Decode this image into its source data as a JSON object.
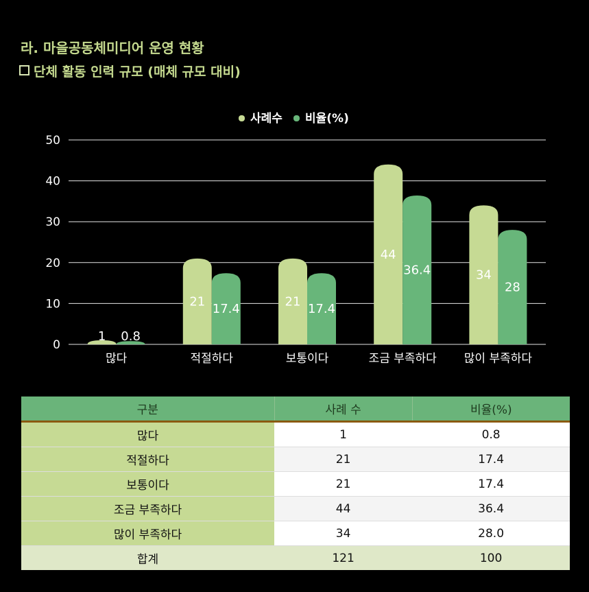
{
  "heading": "라. 마을공동체미디어 운영 현황",
  "subheading": "단체 활동 인력 규모 (매체 규모 대비)",
  "colors": {
    "series1": "#c6da94",
    "series2": "#68b67a",
    "title": "#c5da8f"
  },
  "chart_data": {
    "type": "bar",
    "categories": [
      "많다",
      "적절하다",
      "보통이다",
      "조금 부족하다",
      "많이 부족하다"
    ],
    "series": [
      {
        "name": "사례수",
        "values": [
          1,
          21,
          21,
          44,
          34
        ],
        "labels": [
          "1",
          "21",
          "21",
          "44",
          "34"
        ]
      },
      {
        "name": "비율(%)",
        "values": [
          0.8,
          17.4,
          17.4,
          36.4,
          28
        ],
        "labels": [
          "0.8",
          "17.4",
          "17.4",
          "36.4",
          "28"
        ]
      }
    ],
    "yticks": [
      "0",
      "10",
      "20",
      "30",
      "40",
      "50"
    ],
    "ylim": [
      0,
      50
    ],
    "grid": true,
    "legend": "top"
  },
  "table": {
    "headers": [
      "구분",
      "사례 수",
      "비율(%)"
    ],
    "rows": [
      [
        "많다",
        "1",
        "0.8"
      ],
      [
        "적절하다",
        "21",
        "17.4"
      ],
      [
        "보통이다",
        "21",
        "17.4"
      ],
      [
        "조금 부족하다",
        "44",
        "36.4"
      ],
      [
        "많이 부족하다",
        "34",
        "28.0"
      ]
    ],
    "total": [
      "합계",
      "121",
      "100"
    ]
  }
}
